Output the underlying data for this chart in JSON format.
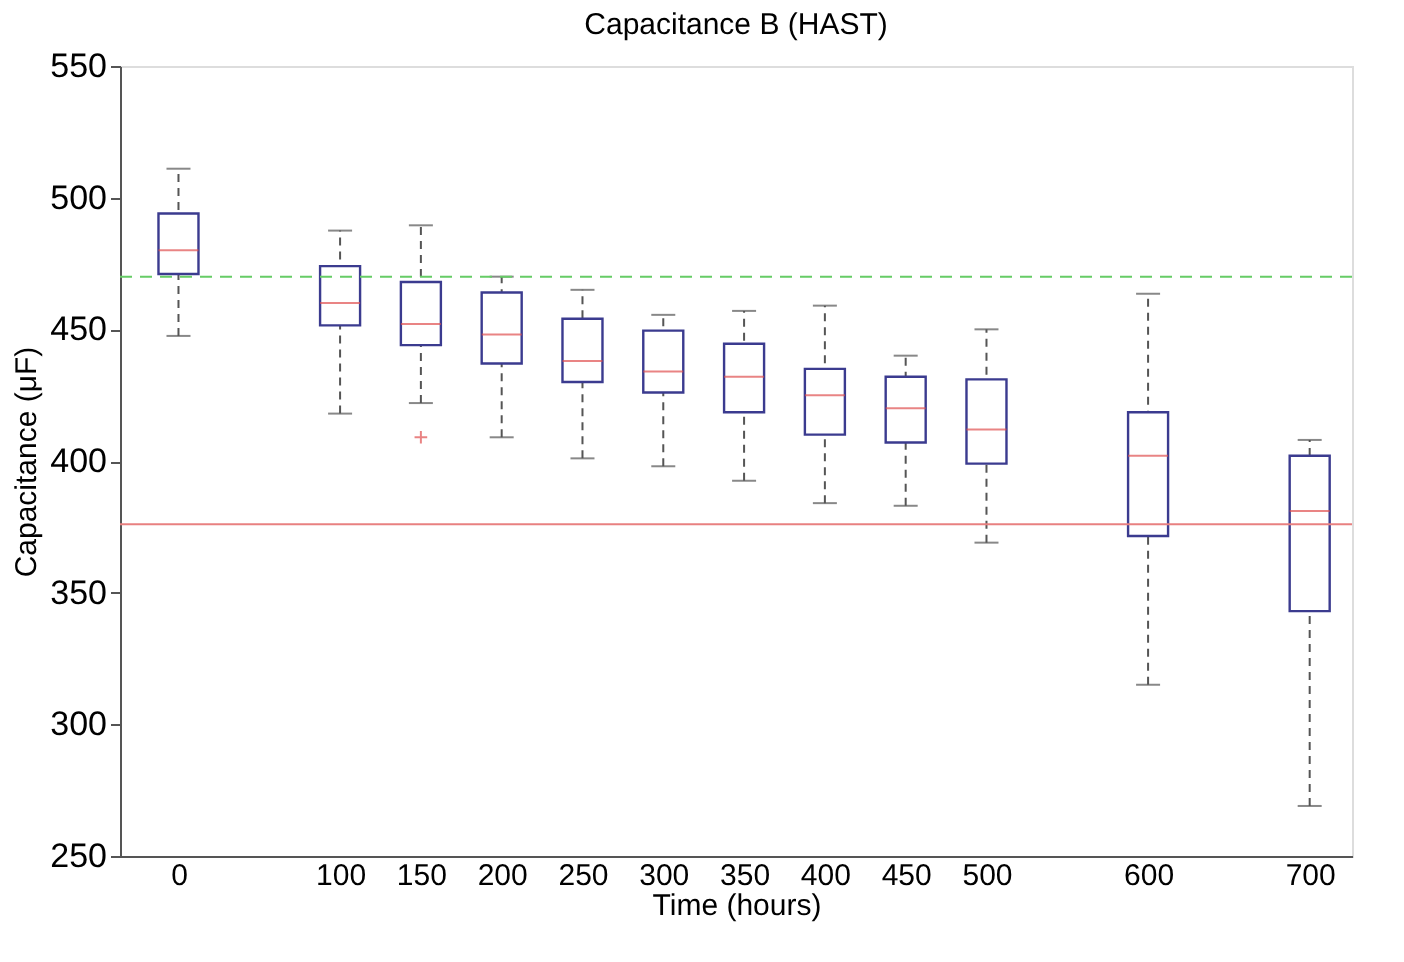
{
  "chart_data": {
    "type": "box",
    "title": "Capacitance B (HAST)",
    "xlabel": "Time (hours)",
    "ylabel": "Capacitance (μF)",
    "x": [
      0,
      100,
      150,
      200,
      250,
      300,
      350,
      400,
      450,
      500,
      600,
      700
    ],
    "series": [
      {
        "color": "#3b3b8f",
        "boxes": [
          {
            "low": 447.5,
            "q1": 471,
            "median": 480,
            "q3": 494,
            "high": 511
          },
          {
            "low": 418,
            "q1": 451.5,
            "median": 460,
            "q3": 474,
            "high": 487.5
          },
          {
            "low": 422,
            "q1": 444,
            "median": 452,
            "q3": 468,
            "high": 489.5,
            "outliers": [
              409
            ]
          },
          {
            "low": 409,
            "q1": 437,
            "median": 448,
            "q3": 464,
            "high": 470
          },
          {
            "low": 401,
            "q1": 430,
            "median": 438,
            "q3": 454,
            "high": 465
          },
          {
            "low": 398,
            "q1": 426,
            "median": 434,
            "q3": 449.5,
            "high": 455.5
          },
          {
            "low": 392.5,
            "q1": 418.5,
            "median": 432,
            "q3": 444.5,
            "high": 457
          },
          {
            "low": 384,
            "q1": 410,
            "median": 425,
            "q3": 435,
            "high": 459
          },
          {
            "low": 383,
            "q1": 407,
            "median": 420,
            "q3": 432,
            "high": 440
          },
          {
            "low": 369,
            "q1": 399,
            "median": 412,
            "q3": 431,
            "high": 450
          },
          {
            "low": 315,
            "q1": 371.5,
            "median": 402,
            "q3": 418.5,
            "high": 463.5
          },
          {
            "low": 269,
            "q1": 343,
            "median": 381,
            "q3": 402,
            "high": 408
          }
        ]
      }
    ],
    "xlim": [
      -30,
      720
    ],
    "ylim": [
      250,
      550
    ],
    "xticks": [
      0,
      100,
      150,
      200,
      250,
      300,
      350,
      400,
      450,
      500,
      600,
      700
    ],
    "yticks": [
      250,
      300,
      350,
      400,
      450,
      500,
      550
    ],
    "ref_lines": [
      {
        "axis": "y",
        "value": 470,
        "color": "#66cc66",
        "line_style": "dashed"
      },
      {
        "axis": "y",
        "value": 376,
        "color": "#e88080",
        "line_style": "solid"
      }
    ],
    "grid": false
  }
}
